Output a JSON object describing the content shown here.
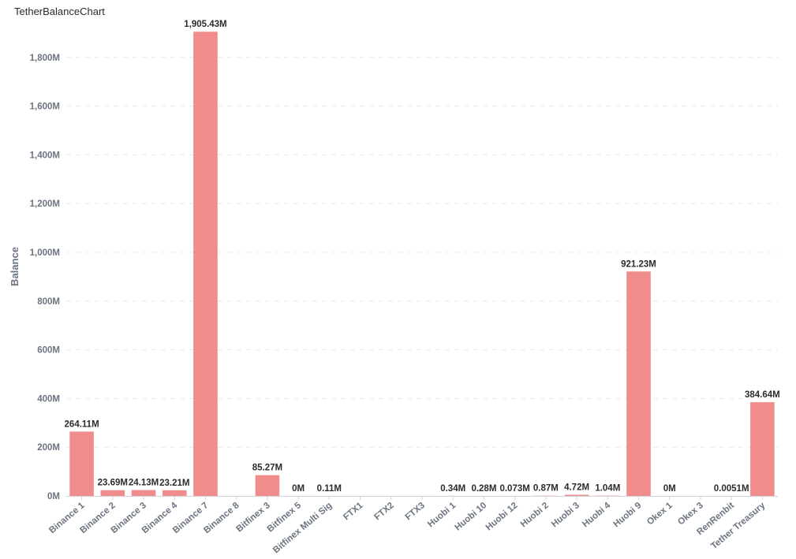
{
  "chart_data": {
    "type": "bar",
    "title": "TetherBalanceChart",
    "xlabel": "",
    "ylabel": "Balance",
    "ylim": [
      0,
      2000
    ],
    "y_ticks": [
      0,
      200,
      400,
      600,
      800,
      1000,
      1200,
      1400,
      1600,
      1800
    ],
    "y_tick_labels": [
      "0M",
      "200M",
      "400M",
      "600M",
      "800M",
      "1,000M",
      "1,200M",
      "1,400M",
      "1,600M",
      "1,800M"
    ],
    "grid": true,
    "bar_color": "#f08c8c",
    "categories": [
      "Binance 1",
      "Binance 2",
      "Binance 3",
      "Binance 4",
      "Binance 7",
      "Binance 8",
      "Bitfinex 3",
      "Bitfinex 5",
      "Bitfinex Multi Sig",
      "FTX1",
      "FTX2",
      "FTX3",
      "Huobi 1",
      "Huobi 10",
      "Huobi 12",
      "Huobi 2",
      "Huobi 3",
      "Huobi 4",
      "Huobi 9",
      "Okex 1",
      "Okex 3",
      "RenRenbit",
      "Tether Treasury"
    ],
    "values": [
      264.11,
      23.69,
      24.13,
      23.21,
      1905.43,
      null,
      85.27,
      0,
      0.11,
      null,
      null,
      null,
      0.34,
      0.28,
      0.073,
      0.87,
      4.72,
      1.04,
      921.23,
      0,
      null,
      0.0051,
      384.64
    ],
    "data_labels": [
      "264.11M",
      "23.69M",
      "24.13M",
      "23.21M",
      "1,905.43M",
      "",
      "85.27M",
      "0M",
      "0.11M",
      "",
      "",
      "",
      "0.34M",
      "0.28M",
      "0.073M",
      "0.87M",
      "4.72M",
      "1.04M",
      "921.23M",
      "0M",
      "",
      "0.0051M",
      "384.64M"
    ]
  }
}
